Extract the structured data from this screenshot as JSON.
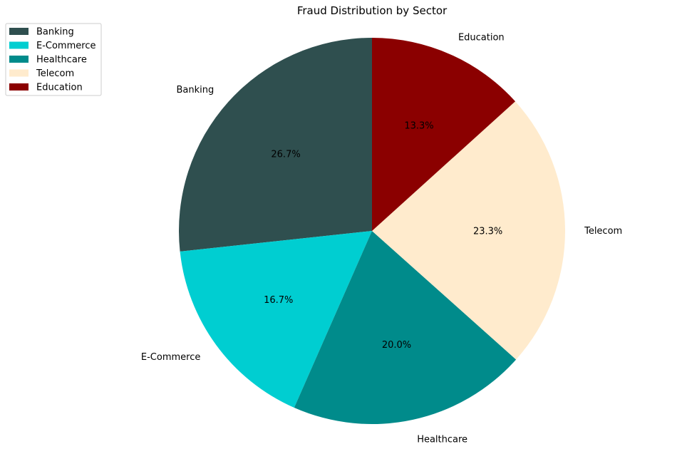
{
  "chart_data": {
    "type": "pie",
    "title": "Fraud Distribution by Sector",
    "categories": [
      "Banking",
      "E-Commerce",
      "Healthcare",
      "Telecom",
      "Education"
    ],
    "values": [
      26.7,
      16.7,
      20.0,
      23.3,
      13.3
    ],
    "percent_labels": [
      "26.7%",
      "16.7%",
      "20.0%",
      "23.3%",
      "13.3%"
    ],
    "colors": [
      "#2f4f4f",
      "#00ced1",
      "#008b8b",
      "#ffebcd",
      "#8b0000"
    ],
    "start_angle_deg": 90,
    "direction": "counterclockwise",
    "legend": {
      "placement": "upper-left",
      "entries": [
        "Banking",
        "E-Commerce",
        "Healthcare",
        "Telecom",
        "Education"
      ]
    }
  }
}
